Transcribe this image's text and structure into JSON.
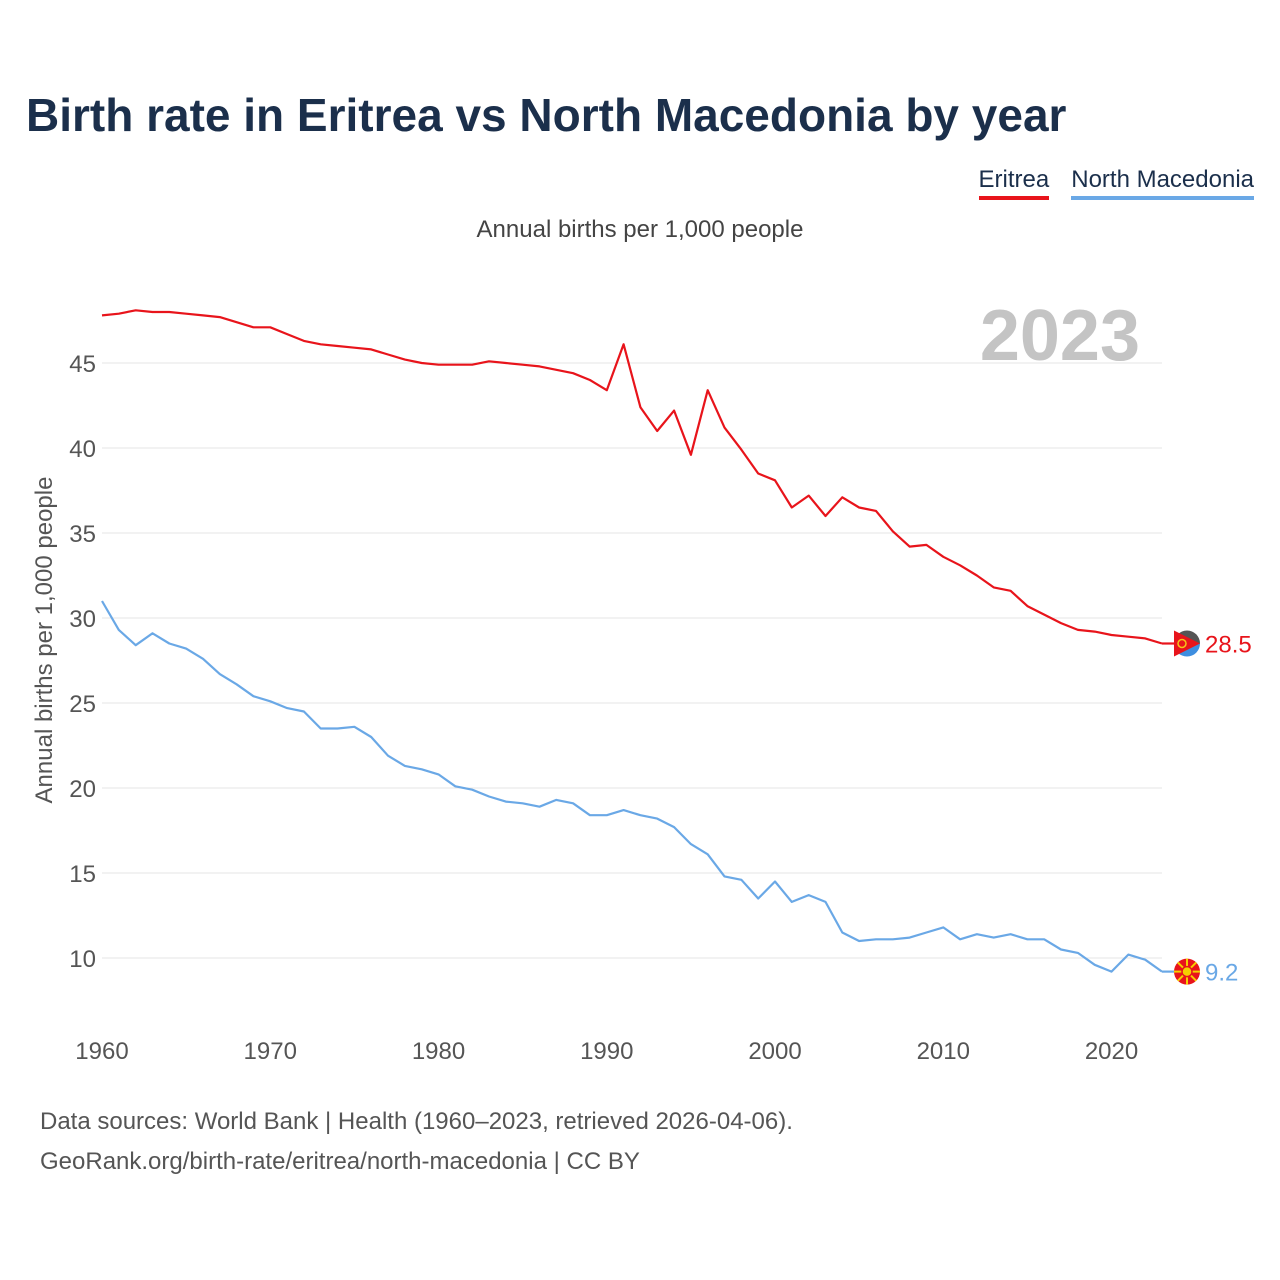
{
  "title": "Birth rate in Eritrea vs North Macedonia by year",
  "subtitle": "Annual births per 1,000 people",
  "year_label": "2023",
  "source_line1": "Data sources: World Bank | Health (1960–2023, retrieved 2026-04-06).",
  "source_line2": "GeoRank.org/birth-rate/eritrea/north-macedonia | CC BY",
  "colors": {
    "eritrea": "#e8141b",
    "north_macedonia": "#6aa8e6",
    "title": "#1b2f4b"
  },
  "chart_data": {
    "type": "line",
    "title": "Birth rate in Eritrea vs North Macedonia by year",
    "xlabel": "",
    "ylabel": "Annual births per 1,000 people",
    "xlim": [
      1960,
      2023
    ],
    "ylim": [
      6,
      50
    ],
    "x_ticks": [
      1960,
      1970,
      1980,
      1990,
      2000,
      2010,
      2020
    ],
    "y_ticks": [
      10,
      15,
      20,
      25,
      30,
      35,
      40,
      45
    ],
    "grid": true,
    "legend": "top-right",
    "series": [
      {
        "name": "Eritrea",
        "color": "#e8141b",
        "end_label": "28.5",
        "x": [
          1960,
          1961,
          1962,
          1963,
          1964,
          1965,
          1966,
          1967,
          1968,
          1969,
          1970,
          1971,
          1972,
          1973,
          1974,
          1975,
          1976,
          1977,
          1978,
          1979,
          1980,
          1981,
          1982,
          1983,
          1984,
          1985,
          1986,
          1987,
          1988,
          1989,
          1990,
          1991,
          1992,
          1993,
          1994,
          1995,
          1996,
          1997,
          1998,
          1999,
          2000,
          2001,
          2002,
          2003,
          2004,
          2005,
          2006,
          2007,
          2008,
          2009,
          2010,
          2011,
          2012,
          2013,
          2014,
          2015,
          2016,
          2017,
          2018,
          2019,
          2020,
          2021,
          2022,
          2023
        ],
        "values": [
          47.8,
          47.9,
          48.1,
          48.0,
          48.0,
          47.9,
          47.8,
          47.7,
          47.4,
          47.1,
          47.1,
          46.7,
          46.3,
          46.1,
          46.0,
          45.9,
          45.8,
          45.5,
          45.2,
          45.0,
          44.9,
          44.9,
          44.9,
          45.1,
          45.0,
          44.9,
          44.8,
          44.6,
          44.4,
          44.0,
          43.4,
          46.1,
          42.4,
          41.0,
          42.2,
          39.6,
          43.4,
          41.2,
          39.9,
          38.5,
          38.1,
          36.5,
          37.2,
          36.0,
          37.1,
          36.5,
          36.3,
          35.1,
          34.2,
          34.3,
          33.6,
          33.1,
          32.5,
          31.8,
          31.6,
          30.7,
          30.2,
          29.7,
          29.3,
          29.2,
          29.0,
          28.9,
          28.8,
          28.5
        ]
      },
      {
        "name": "North Macedonia",
        "color": "#6aa8e6",
        "end_label": "9.2",
        "x": [
          1960,
          1961,
          1962,
          1963,
          1964,
          1965,
          1966,
          1967,
          1968,
          1969,
          1970,
          1971,
          1972,
          1973,
          1974,
          1975,
          1976,
          1977,
          1978,
          1979,
          1980,
          1981,
          1982,
          1983,
          1984,
          1985,
          1986,
          1987,
          1988,
          1989,
          1990,
          1991,
          1992,
          1993,
          1994,
          1995,
          1996,
          1997,
          1998,
          1999,
          2000,
          2001,
          2002,
          2003,
          2004,
          2005,
          2006,
          2007,
          2008,
          2009,
          2010,
          2011,
          2012,
          2013,
          2014,
          2015,
          2016,
          2017,
          2018,
          2019,
          2020,
          2021,
          2022,
          2023
        ],
        "values": [
          31.0,
          29.3,
          28.4,
          29.1,
          28.5,
          28.2,
          27.6,
          26.7,
          26.1,
          25.4,
          25.1,
          24.7,
          24.5,
          23.5,
          23.5,
          23.6,
          23.0,
          21.9,
          21.3,
          21.1,
          20.8,
          20.1,
          19.9,
          19.5,
          19.2,
          19.1,
          18.9,
          19.3,
          19.1,
          18.4,
          18.4,
          18.7,
          18.4,
          18.2,
          17.7,
          16.7,
          16.1,
          14.8,
          14.6,
          13.5,
          14.5,
          13.3,
          13.7,
          13.3,
          11.5,
          11.0,
          11.1,
          11.1,
          11.2,
          11.5,
          11.8,
          11.1,
          11.4,
          11.2,
          11.4,
          11.1,
          11.1,
          10.5,
          10.3,
          9.6,
          9.2,
          10.2,
          9.9,
          9.2
        ]
      }
    ]
  }
}
